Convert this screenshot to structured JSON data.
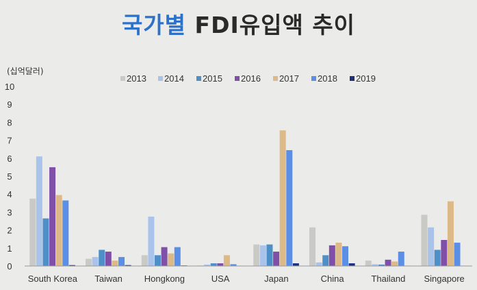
{
  "title": {
    "part1": "국가별",
    "part2": "FDI유입액 추이"
  },
  "chart_data": {
    "type": "bar",
    "title": "국가별 FDI유입액 추이",
    "ylabel": "(십억달러)",
    "xlabel": "",
    "ylim": [
      0,
      10
    ],
    "yticks": [
      "0",
      "1",
      "2",
      "3",
      "4",
      "5",
      "6",
      "7",
      "8",
      "9",
      "10"
    ],
    "grid": false,
    "legend_position": "top-right",
    "categories": [
      "South Korea",
      "Taiwan",
      "Hongkong",
      "USA",
      "Japan",
      "China",
      "Thailand",
      "Singapore"
    ],
    "series": [
      {
        "name": "2013",
        "color": "#c9c9c6",
        "values": [
          3.75,
          0.4,
          0.6,
          0.03,
          1.2,
          2.15,
          0.3,
          2.85
        ]
      },
      {
        "name": "2014",
        "color": "#a9c3ea",
        "values": [
          6.1,
          0.5,
          2.75,
          0.08,
          1.15,
          0.2,
          0.1,
          2.15
        ]
      },
      {
        "name": "2015",
        "color": "#4f8fc8",
        "values": [
          2.65,
          0.9,
          0.6,
          0.15,
          1.2,
          0.6,
          0.08,
          0.9
        ]
      },
      {
        "name": "2016",
        "color": "#8050a8",
        "values": [
          5.5,
          0.8,
          1.05,
          0.15,
          0.8,
          1.15,
          0.35,
          1.45
        ]
      },
      {
        "name": "2017",
        "color": "#dcb986",
        "values": [
          3.95,
          0.3,
          0.7,
          0.6,
          7.55,
          1.3,
          0.25,
          3.6
        ]
      },
      {
        "name": "2018",
        "color": "#5b8fe6",
        "values": [
          3.65,
          0.5,
          1.05,
          0.1,
          6.45,
          1.1,
          0.8,
          1.3
        ]
      },
      {
        "name": "2019",
        "color": "#1f2f7a",
        "values": [
          0.05,
          0.05,
          0.03,
          0.02,
          0.15,
          0.15,
          0.02,
          0.02
        ]
      }
    ]
  }
}
